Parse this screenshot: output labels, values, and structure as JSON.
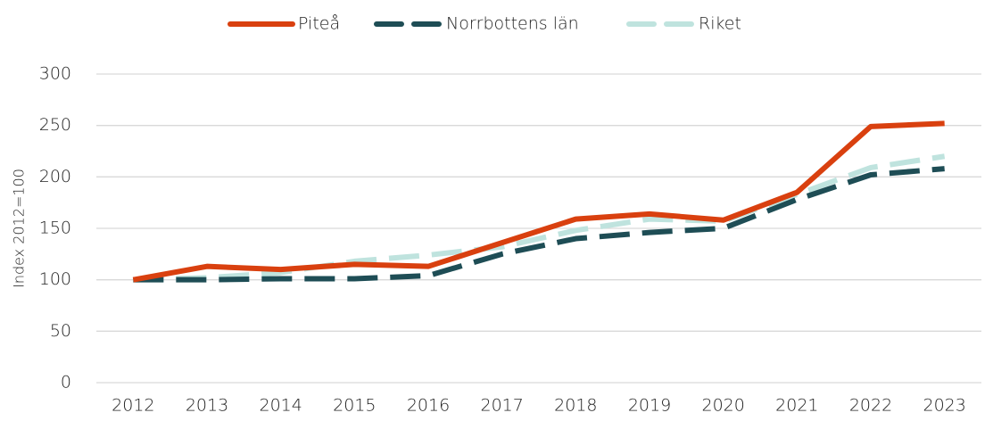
{
  "chart_data": {
    "type": "line",
    "y_label": "Index 2012=100",
    "categories": [
      "2012",
      "2013",
      "2014",
      "2015",
      "2016",
      "2017",
      "2018",
      "2019",
      "2020",
      "2021",
      "2022",
      "2023"
    ],
    "series": [
      {
        "name": "Piteå",
        "color": "#d9400f",
        "dashed": false,
        "values": [
          100,
          113,
          110,
          115,
          113,
          136,
          159,
          164,
          158,
          185,
          249,
          252
        ]
      },
      {
        "name": "Norrbottens län",
        "color": "#1e4d55",
        "dashed": true,
        "values": [
          100,
          100,
          101,
          101,
          104,
          125,
          140,
          146,
          150,
          178,
          202,
          208
        ]
      },
      {
        "name": "Riket",
        "color": "#bfe3de",
        "dashed": true,
        "values": [
          100,
          102,
          107,
          118,
          124,
          132,
          148,
          159,
          157,
          183,
          209,
          220
        ]
      }
    ],
    "ylim": [
      0,
      300
    ],
    "yticks": [
      0,
      50,
      100,
      150,
      200,
      250,
      300
    ],
    "grid": true,
    "legend": "top"
  }
}
